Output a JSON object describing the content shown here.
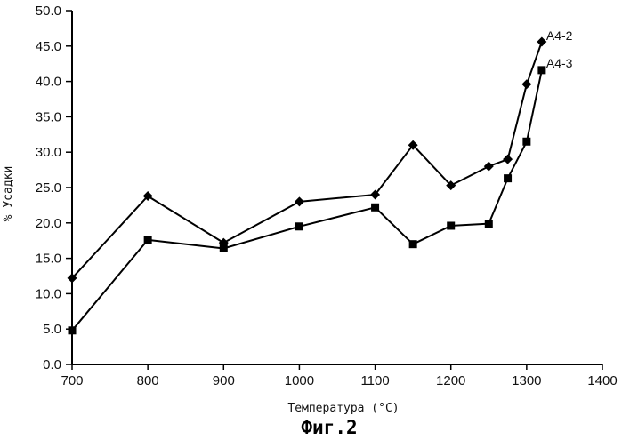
{
  "chart_data": {
    "type": "line",
    "xlabel": "Температура (°C)",
    "ylabel": "% Усадки",
    "caption": "Фиг.2",
    "xlim": [
      700,
      1400
    ],
    "ylim": [
      0,
      50
    ],
    "xticks": [
      700,
      800,
      900,
      1000,
      1100,
      1200,
      1300,
      1400
    ],
    "yticks": [
      "0.0",
      "5.0",
      "10.0",
      "15.0",
      "20.0",
      "25.0",
      "30.0",
      "35.0",
      "40.0",
      "45.0",
      "50.0"
    ],
    "grid": false,
    "series": [
      {
        "name": "A4-2",
        "marker": "diamond",
        "x": [
          700,
          800,
          900,
          1000,
          1100,
          1150,
          1200,
          1250,
          1275,
          1300,
          1320
        ],
        "y": [
          12.2,
          23.8,
          17.2,
          23.0,
          24.0,
          31.0,
          25.3,
          28.0,
          29.0,
          39.6,
          45.6
        ]
      },
      {
        "name": "A4-3",
        "marker": "square",
        "x": [
          700,
          800,
          900,
          1000,
          1100,
          1150,
          1200,
          1250,
          1275,
          1300,
          1320
        ],
        "y": [
          4.8,
          17.6,
          16.4,
          19.5,
          22.2,
          17.0,
          19.6,
          19.9,
          26.3,
          31.5,
          41.6
        ]
      }
    ]
  }
}
